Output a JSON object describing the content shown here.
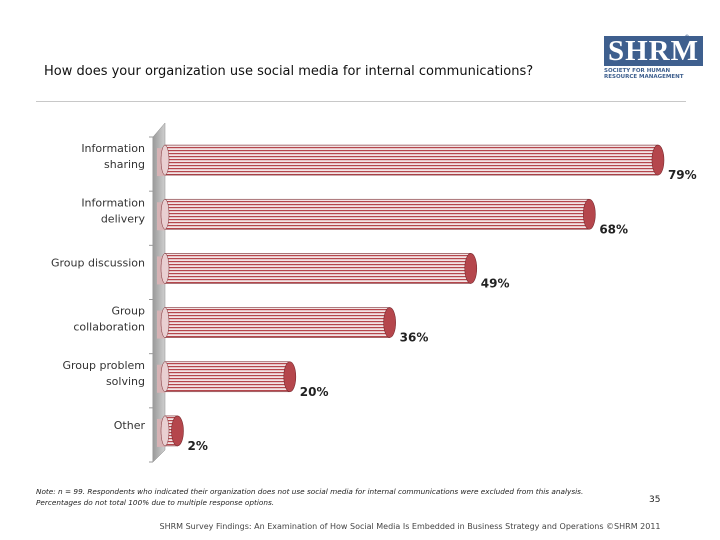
{
  "header": {
    "title": "How does your organization use social media for internal communications?"
  },
  "logo": {
    "mark": "SHRM",
    "registered": "®",
    "sub_line1": "SOCIETY FOR HUMAN",
    "sub_line2": "RESOURCE MANAGEMENT"
  },
  "chart_data": {
    "type": "bar",
    "orientation": "horizontal",
    "categories": [
      [
        "Information",
        "sharing"
      ],
      [
        "Information",
        "delivery"
      ],
      [
        "Group discussion"
      ],
      [
        "Group",
        "collaboration"
      ],
      [
        "Group problem",
        "solving"
      ],
      [
        "Other"
      ]
    ],
    "values": [
      79,
      68,
      49,
      36,
      20,
      2
    ],
    "value_labels": [
      "79%",
      "68%",
      "49%",
      "36%",
      "20%",
      "2%"
    ],
    "xlim": [
      0,
      100
    ],
    "bar_color": "#b5464c"
  },
  "note": {
    "line1": "Note: n = 99. Respondents who indicated their organization does not use social media for internal communications were excluded from this analysis.",
    "line2": "Percentages do not total 100% due to multiple response options."
  },
  "page_number": "35",
  "footer": "SHRM Survey Findings: An Examination of How Social Media Is Embedded in Business Strategy and Operations ©SHRM 2011"
}
